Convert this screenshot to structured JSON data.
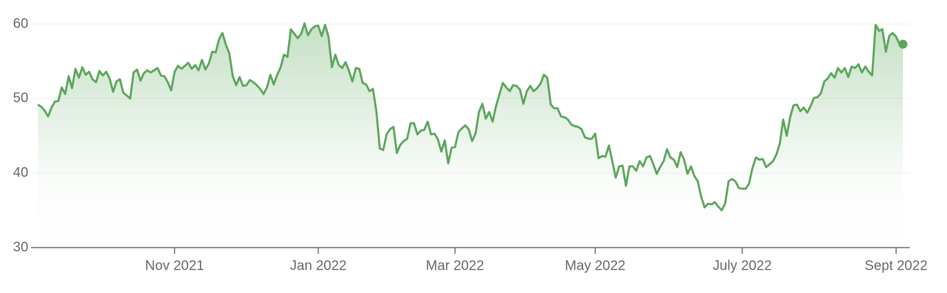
{
  "chart_data": {
    "type": "line",
    "color": "#5ba55b",
    "grid": true,
    "values": [
      49.2,
      48.9,
      48.4,
      47.6,
      48.8,
      49.6,
      49.7,
      51.5,
      50.6,
      53.0,
      51.4,
      54.0,
      52.8,
      54.2,
      53.2,
      53.6,
      52.6,
      52.2,
      53.7,
      53.1,
      53.6,
      52.7,
      50.9,
      52.3,
      52.6,
      50.8,
      50.4,
      50.0,
      53.5,
      53.9,
      52.4,
      53.4,
      53.8,
      53.5,
      53.8,
      54.1,
      53.1,
      53.0,
      52.2,
      51.1,
      53.6,
      54.4,
      54.0,
      54.4,
      54.8,
      54.0,
      54.5,
      53.8,
      55.2,
      53.9,
      54.7,
      56.3,
      56.2,
      58.0,
      58.8,
      57.2,
      56.1,
      53.0,
      51.8,
      52.9,
      51.7,
      51.8,
      52.5,
      52.2,
      51.8,
      51.3,
      50.6,
      51.5,
      53.2,
      51.9,
      53.2,
      54.2,
      55.9,
      55.6,
      59.3,
      58.7,
      58.1,
      58.7,
      60.1,
      58.5,
      59.3,
      59.7,
      59.8,
      58.4,
      59.9,
      58.3,
      54.2,
      55.9,
      54.5,
      54.1,
      54.9,
      53.7,
      52.3,
      54.1,
      54.0,
      52.1,
      51.9,
      51.0,
      51.3,
      48.3,
      43.3,
      43.1,
      45.2,
      45.9,
      46.2,
      42.7,
      43.8,
      44.3,
      44.6,
      46.7,
      46.7,
      45.2,
      45.7,
      45.8,
      46.9,
      45.2,
      45.3,
      44.5,
      42.9,
      44.4,
      41.3,
      43.4,
      43.5,
      45.5,
      46.0,
      46.4,
      45.9,
      44.3,
      45.3,
      48.2,
      49.3,
      47.3,
      48.2,
      46.9,
      49.0,
      50.6,
      52.1,
      51.5,
      51.0,
      51.8,
      51.7,
      51.2,
      49.3,
      51.0,
      51.7,
      51.0,
      51.4,
      52.0,
      53.2,
      52.8,
      49.2,
      48.7,
      48.7,
      47.6,
      47.5,
      47.2,
      46.5,
      46.3,
      46.2,
      45.9,
      44.8,
      44.6,
      44.6,
      45.3,
      42.0,
      42.3,
      42.2,
      43.7,
      41.6,
      39.4,
      40.9,
      41.0,
      38.3,
      40.9,
      40.9,
      40.3,
      41.6,
      40.9,
      42.1,
      42.3,
      41.2,
      39.9,
      40.8,
      41.6,
      43.2,
      42.1,
      41.8,
      40.8,
      42.8,
      41.8,
      39.9,
      40.9,
      39.6,
      38.9,
      36.8,
      35.4,
      35.9,
      35.8,
      36.1,
      35.5,
      35.0,
      35.9,
      38.9,
      39.2,
      38.9,
      38.0,
      37.9,
      37.9,
      38.6,
      40.7,
      42.1,
      41.8,
      41.9,
      40.8,
      41.2,
      41.6,
      42.5,
      44.0,
      47.2,
      45.0,
      47.5,
      49.1,
      49.2,
      48.3,
      48.8,
      48.1,
      49.0,
      50.1,
      50.2,
      50.7,
      52.3,
      52.7,
      53.4,
      52.8,
      54.1,
      53.5,
      54.1,
      52.9,
      54.3,
      54.1,
      54.6,
      53.5,
      54.3,
      53.6,
      53.1,
      59.9,
      59.1,
      59.3,
      56.3,
      58.4,
      58.8,
      58.3,
      57.3,
      57.3
    ],
    "xlim": [
      -2,
      255
    ],
    "xticks": [
      {
        "value": 40,
        "label": "Nov 2021"
      },
      {
        "value": 82,
        "label": "Jan 2022"
      },
      {
        "value": 122,
        "label": "Mar 2022"
      },
      {
        "value": 163,
        "label": "May 2022"
      },
      {
        "value": 206,
        "label": "July 2022"
      },
      {
        "value": 251,
        "label": "Sept 2022"
      }
    ],
    "ylim": [
      30,
      60
    ],
    "yticks": [
      30,
      40,
      50,
      60
    ]
  }
}
